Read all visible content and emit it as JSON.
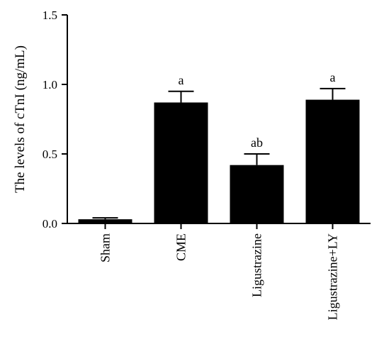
{
  "chart_data": {
    "type": "bar",
    "title": "",
    "xlabel": "",
    "ylabel": "The levels of cTnI (ng/mL)",
    "ylim": [
      0,
      1.5
    ],
    "yticks": [
      "0.0",
      "0.5",
      "1.0",
      "1.5"
    ],
    "categories": [
      "Sham",
      "CME",
      "Ligustrazine",
      "Ligustrazine+LY"
    ],
    "values": [
      0.03,
      0.87,
      0.42,
      0.89
    ],
    "errors": [
      0.01,
      0.08,
      0.08,
      0.08
    ],
    "annotations": [
      "",
      "a",
      "ab",
      "a"
    ],
    "grid": false,
    "colors": {
      "bar": "#000000",
      "axis": "#000000"
    }
  }
}
